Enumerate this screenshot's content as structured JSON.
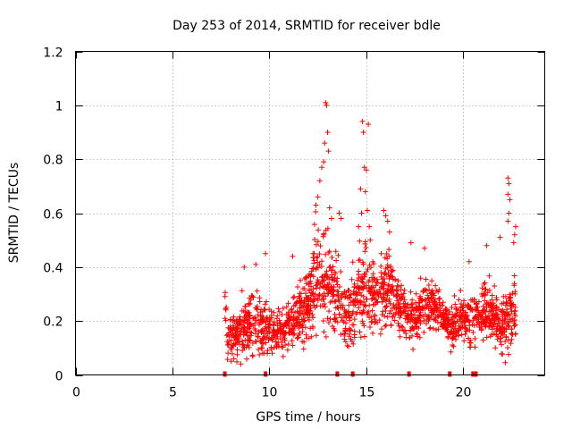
{
  "chart_data": {
    "type": "scatter",
    "title": "Day 253 of 2014, SRMTID for receiver bdle",
    "xlabel": "GPS time / hours",
    "ylabel": "SRMTID / TECUs",
    "xlim": [
      0,
      24.2
    ],
    "ylim": [
      0,
      1.2
    ],
    "xticks": [
      0,
      5,
      10,
      15,
      20
    ],
    "xtick_labels": [
      "0",
      "5",
      "10",
      "15",
      "20"
    ],
    "yticks": [
      0,
      0.2,
      0.4,
      0.6,
      0.8,
      1.0,
      1.2
    ],
    "ytick_labels": [
      "0",
      "0.2",
      "0.4",
      "0.6",
      "0.8",
      "1",
      "1.2"
    ],
    "grid": true,
    "marker": "+",
    "series_color": "#ff0000",
    "x_range_of_data": [
      7.7,
      22.7
    ],
    "envelope": [
      {
        "x": 7.8,
        "center": 0.13,
        "spread": 0.07
      },
      {
        "x": 8.5,
        "center": 0.17,
        "spread": 0.1
      },
      {
        "x": 9.0,
        "center": 0.2,
        "spread": 0.12
      },
      {
        "x": 9.5,
        "center": 0.19,
        "spread": 0.12
      },
      {
        "x": 10.0,
        "center": 0.16,
        "spread": 0.1
      },
      {
        "x": 10.5,
        "center": 0.15,
        "spread": 0.08
      },
      {
        "x": 11.0,
        "center": 0.18,
        "spread": 0.1
      },
      {
        "x": 11.5,
        "center": 0.22,
        "spread": 0.12
      },
      {
        "x": 12.0,
        "center": 0.28,
        "spread": 0.15
      },
      {
        "x": 12.5,
        "center": 0.36,
        "spread": 0.22
      },
      {
        "x": 13.0,
        "center": 0.34,
        "spread": 0.2
      },
      {
        "x": 13.5,
        "center": 0.3,
        "spread": 0.16
      },
      {
        "x": 14.0,
        "center": 0.2,
        "spread": 0.1
      },
      {
        "x": 14.5,
        "center": 0.3,
        "spread": 0.2
      },
      {
        "x": 15.0,
        "center": 0.3,
        "spread": 0.18
      },
      {
        "x": 15.5,
        "center": 0.28,
        "spread": 0.14
      },
      {
        "x": 16.0,
        "center": 0.32,
        "spread": 0.16
      },
      {
        "x": 16.5,
        "center": 0.27,
        "spread": 0.12
      },
      {
        "x": 17.0,
        "center": 0.22,
        "spread": 0.1
      },
      {
        "x": 17.5,
        "center": 0.2,
        "spread": 0.09
      },
      {
        "x": 18.0,
        "center": 0.27,
        "spread": 0.1
      },
      {
        "x": 18.5,
        "center": 0.26,
        "spread": 0.1
      },
      {
        "x": 19.0,
        "center": 0.21,
        "spread": 0.09
      },
      {
        "x": 19.5,
        "center": 0.18,
        "spread": 0.08
      },
      {
        "x": 20.0,
        "center": 0.22,
        "spread": 0.1
      },
      {
        "x": 20.5,
        "center": 0.2,
        "spread": 0.1
      },
      {
        "x": 21.0,
        "center": 0.24,
        "spread": 0.12
      },
      {
        "x": 21.5,
        "center": 0.22,
        "spread": 0.1
      },
      {
        "x": 22.0,
        "center": 0.18,
        "spread": 0.1
      },
      {
        "x": 22.7,
        "center": 0.25,
        "spread": 0.15
      }
    ],
    "peaks": [
      {
        "x": 12.9,
        "y": 1.01
      },
      {
        "x": 12.95,
        "y": 1.0
      },
      {
        "x": 13.0,
        "y": 0.9
      },
      {
        "x": 13.05,
        "y": 0.83
      },
      {
        "x": 12.8,
        "y": 0.79
      },
      {
        "x": 12.7,
        "y": 0.77
      },
      {
        "x": 12.6,
        "y": 0.72
      },
      {
        "x": 12.5,
        "y": 0.66
      },
      {
        "x": 12.4,
        "y": 0.63
      },
      {
        "x": 12.85,
        "y": 0.86
      },
      {
        "x": 13.1,
        "y": 0.62
      },
      {
        "x": 13.2,
        "y": 0.58
      },
      {
        "x": 14.8,
        "y": 0.94
      },
      {
        "x": 15.1,
        "y": 0.93
      },
      {
        "x": 14.85,
        "y": 0.9
      },
      {
        "x": 14.9,
        "y": 0.77
      },
      {
        "x": 15.0,
        "y": 0.76
      },
      {
        "x": 14.95,
        "y": 0.68
      },
      {
        "x": 14.7,
        "y": 0.69
      },
      {
        "x": 15.05,
        "y": 0.61
      },
      {
        "x": 14.75,
        "y": 0.6
      },
      {
        "x": 14.6,
        "y": 0.55
      },
      {
        "x": 15.15,
        "y": 0.55
      },
      {
        "x": 15.2,
        "y": 0.5
      },
      {
        "x": 13.6,
        "y": 0.6
      },
      {
        "x": 13.7,
        "y": 0.58
      },
      {
        "x": 15.9,
        "y": 0.61
      },
      {
        "x": 16.0,
        "y": 0.59
      },
      {
        "x": 16.1,
        "y": 0.57
      },
      {
        "x": 16.2,
        "y": 0.53
      },
      {
        "x": 22.3,
        "y": 0.73
      },
      {
        "x": 22.35,
        "y": 0.71
      },
      {
        "x": 22.3,
        "y": 0.67
      },
      {
        "x": 22.4,
        "y": 0.65
      },
      {
        "x": 22.35,
        "y": 0.6
      },
      {
        "x": 22.3,
        "y": 0.57
      },
      {
        "x": 22.7,
        "y": 0.55
      },
      {
        "x": 22.65,
        "y": 0.52
      },
      {
        "x": 22.6,
        "y": 0.49
      },
      {
        "x": 9.8,
        "y": 0.45
      },
      {
        "x": 8.7,
        "y": 0.4
      },
      {
        "x": 9.3,
        "y": 0.41
      },
      {
        "x": 11.2,
        "y": 0.44
      },
      {
        "x": 17.3,
        "y": 0.49
      },
      {
        "x": 18.0,
        "y": 0.47
      },
      {
        "x": 21.2,
        "y": 0.48
      },
      {
        "x": 21.9,
        "y": 0.51
      },
      {
        "x": 20.3,
        "y": 0.42
      }
    ],
    "x_axis_markers": [
      7.7,
      9.8,
      13.5,
      14.3,
      17.2,
      19.3,
      20.5,
      20.65
    ]
  }
}
